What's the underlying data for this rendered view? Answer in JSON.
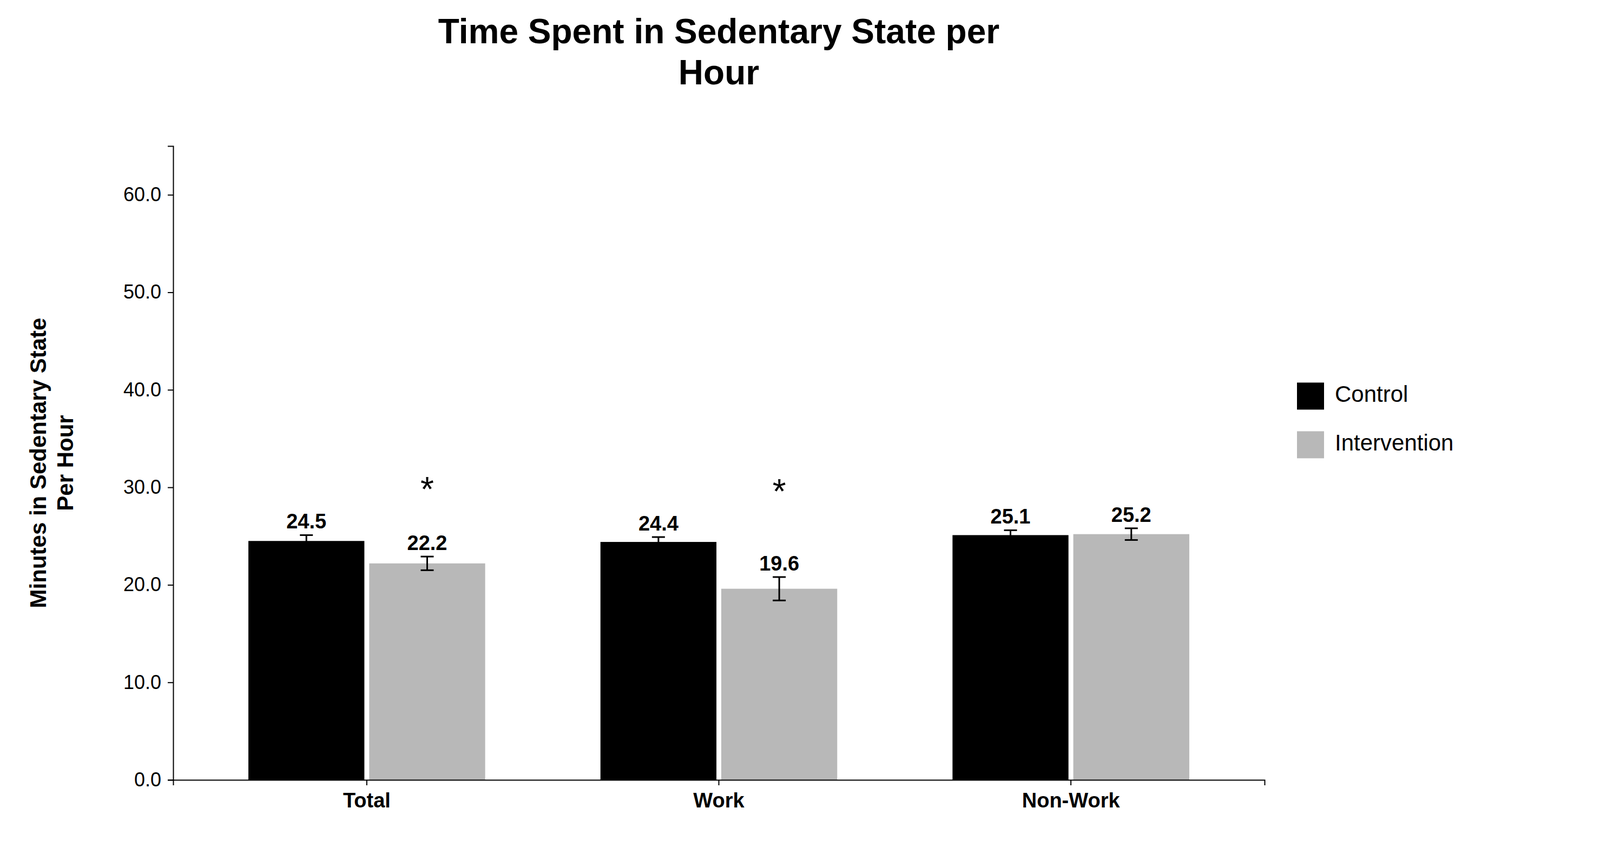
{
  "chart_data": {
    "type": "bar",
    "title": "Time Spent in Sedentary State per\nHour",
    "y_label": "Minutes in Sedentary State\nPer Hour",
    "categories": [
      "Total",
      "Work",
      "Non-Work"
    ],
    "series": [
      {
        "name": "Control",
        "color": "#000000",
        "values": [
          24.5,
          24.4,
          25.1
        ],
        "errors": [
          0.6,
          0.5,
          0.5
        ]
      },
      {
        "name": "Intervention",
        "color": "#b8b8b8",
        "values": [
          22.2,
          19.6,
          25.2
        ],
        "errors": [
          0.7,
          1.2,
          0.6
        ]
      }
    ],
    "ylim": [
      0,
      65
    ],
    "yticks": [
      {
        "value": 0,
        "label": "0.0"
      },
      {
        "value": 10,
        "label": "10.0"
      },
      {
        "value": 20,
        "label": "20.0"
      },
      {
        "value": 30,
        "label": "30.0"
      },
      {
        "value": 40,
        "label": "40.0"
      },
      {
        "value": 50,
        "label": "50.0"
      },
      {
        "value": 60,
        "label": "60.0"
      }
    ],
    "annotations": [
      {
        "text": "*",
        "category": "Total"
      },
      {
        "text": "*",
        "category": "Work"
      }
    ],
    "grid": false,
    "legend": "right",
    "data_labels": true
  }
}
